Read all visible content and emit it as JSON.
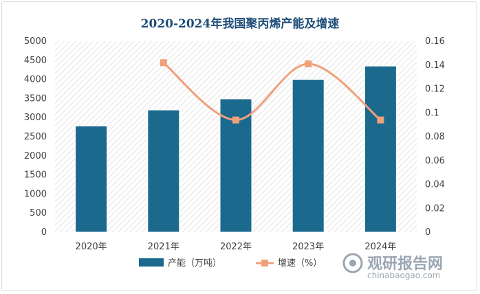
{
  "chart_data": {
    "type": "bar",
    "title": "2020-2024年我国聚丙烯产能及增速",
    "categories": [
      "2020年",
      "2021年",
      "2022年",
      "2023年",
      "2024年"
    ],
    "series": [
      {
        "name": "产能（万吨）",
        "type": "bar",
        "axis": "left",
        "color": "#1b6a8e",
        "values": [
          2780,
          3200,
          3490,
          4000,
          4350
        ]
      },
      {
        "name": "增速（%）",
        "type": "line",
        "axis": "right",
        "color": "#f0a07a",
        "values": [
          null,
          0.142,
          0.094,
          0.141,
          0.094
        ]
      }
    ],
    "y_left": {
      "min": 0,
      "max": 5000,
      "step": 500,
      "tick_labels": [
        "0",
        "500",
        "1000",
        "1500",
        "2000",
        "2500",
        "3000",
        "3500",
        "4000",
        "4500",
        "5000"
      ]
    },
    "y_right": {
      "min": 0,
      "max": 0.16,
      "step": 0.02,
      "tick_labels": [
        "0",
        "0.02",
        "0.04",
        "0.06",
        "0.08",
        "0.1",
        "0.12",
        "0.14",
        "0.16"
      ]
    },
    "legend": "bottom"
  },
  "watermark": {
    "name": "观研报告网",
    "url": "chinabaogao.com"
  }
}
